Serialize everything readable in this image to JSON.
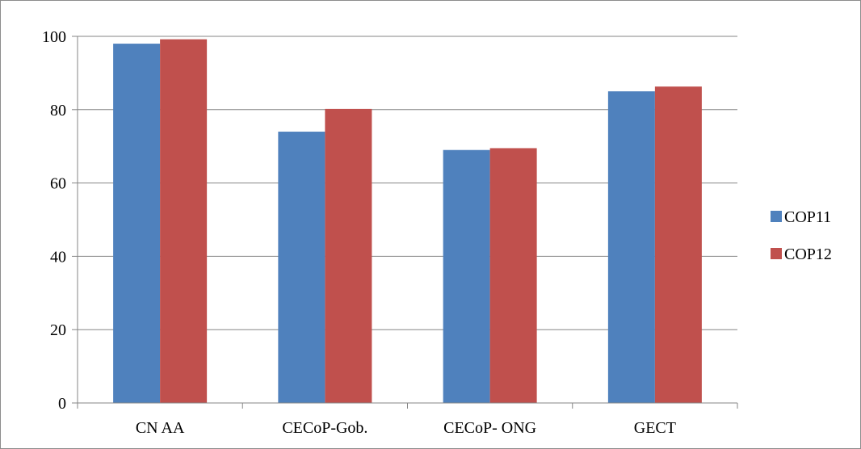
{
  "chart_data": {
    "type": "bar",
    "title": "",
    "xlabel": "",
    "ylabel": "",
    "categories": [
      "CN AA",
      "CECoP-Gob.",
      "CECoP- ONG",
      "GECT"
    ],
    "series": [
      {
        "name": "COP11",
        "values": [
          98,
          74,
          69,
          85
        ],
        "color": "#4f81bd"
      },
      {
        "name": "COP12",
        "values": [
          99.2,
          80.2,
          69.5,
          86.3
        ],
        "color": "#c0504d"
      }
    ],
    "ylim": [
      0,
      100
    ],
    "yticks": [
      0,
      20,
      40,
      60,
      80,
      100
    ],
    "grid": "horizontal",
    "legend": "right"
  }
}
